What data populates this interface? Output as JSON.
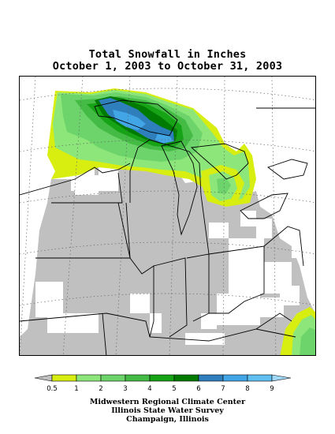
{
  "title": {
    "line1": "Total Snowfall in Inches",
    "line2": "October 1, 2003 to October 31, 2003"
  },
  "legend": {
    "bins": [
      {
        "label": "0.5",
        "color": "#c0c0c0"
      },
      {
        "label": "1",
        "color": "#d8ee10"
      },
      {
        "label": "2",
        "color": "#8ce67a"
      },
      {
        "label": "3",
        "color": "#6cd46a"
      },
      {
        "label": "4",
        "color": "#44bb44"
      },
      {
        "label": "5",
        "color": "#16a316"
      },
      {
        "label": "6",
        "color": "#007a00"
      },
      {
        "label": "7",
        "color": "#2e7fbc"
      },
      {
        "label": "8",
        "color": "#42a5e6"
      },
      {
        "label": "9",
        "color": "#5fbff0"
      }
    ],
    "over_color": "#9fd8f7"
  },
  "credits": {
    "line1": "Midwestern Regional Climate Center",
    "line2": "Illinois State Water Survey",
    "line3": "Champaign, Illinois"
  },
  "map": {
    "no_snow_color": "#ffffff",
    "trace_color": "#c0c0c0",
    "boundary_color": "#000000",
    "graticule_color": "#666666"
  }
}
